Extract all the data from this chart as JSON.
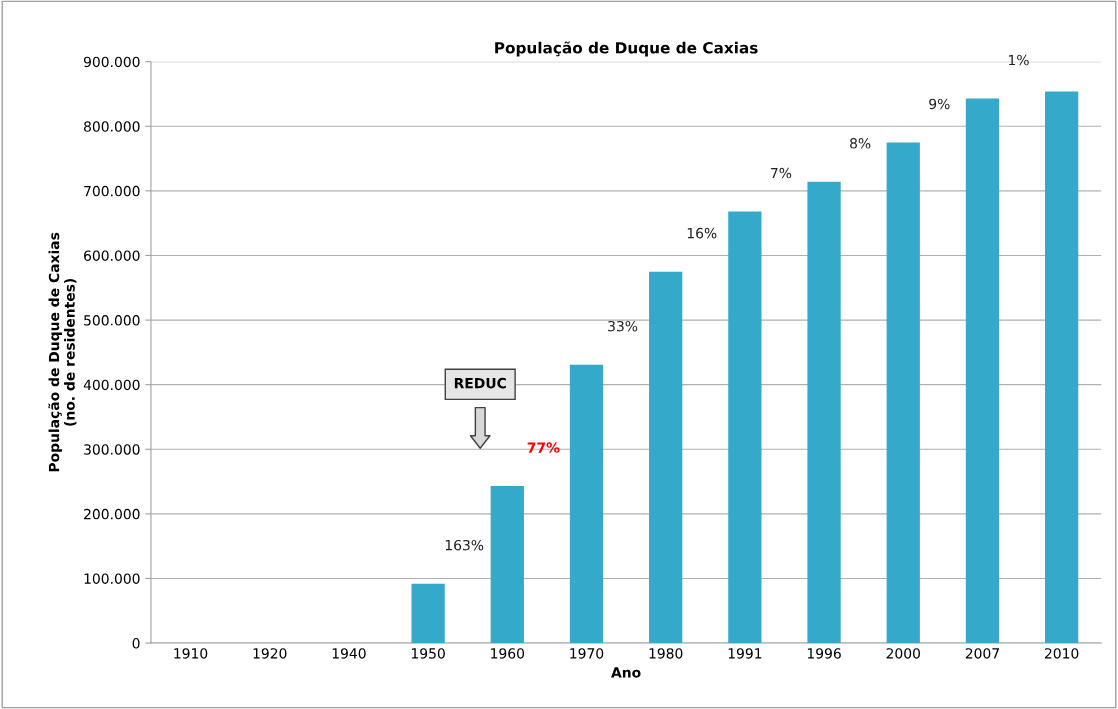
{
  "chart_data": {
    "type": "bar",
    "title": "População de Duque de Caxias",
    "xlabel": "Ano",
    "ylabel": "População de Duque de Caxias\n(no. de residentes)",
    "categories": [
      "1910",
      "1920",
      "1940",
      "1950",
      "1960",
      "1970",
      "1980",
      "1991",
      "1996",
      "2000",
      "2007",
      "2010"
    ],
    "values": [
      0,
      0,
      0,
      92000,
      243000,
      431000,
      575000,
      668000,
      714000,
      775000,
      843000,
      854000
    ],
    "color": "#35a9c9",
    "ylim": [
      0,
      900000
    ],
    "yticks": [
      0,
      {
        "value": 100000,
        "label": "100.000"
      },
      {
        "value": 200000,
        "label": "200.000"
      },
      {
        "value": 300000,
        "label": "300.000"
      },
      {
        "value": 400000,
        "label": "400.000"
      },
      {
        "value": 500000,
        "label": "500.000"
      },
      {
        "value": 600000,
        "label": "600.000"
      },
      {
        "value": 700000,
        "label": "700.000"
      },
      {
        "value": 800000,
        "label": "800.000"
      },
      {
        "value": 900000,
        "label": "900.000"
      }
    ],
    "grid": "y",
    "legend": false,
    "annotations": [
      "REDUC",
      "163%",
      "77%",
      "33%",
      "16%",
      "7%",
      "8%",
      "9%",
      "1%"
    ]
  }
}
